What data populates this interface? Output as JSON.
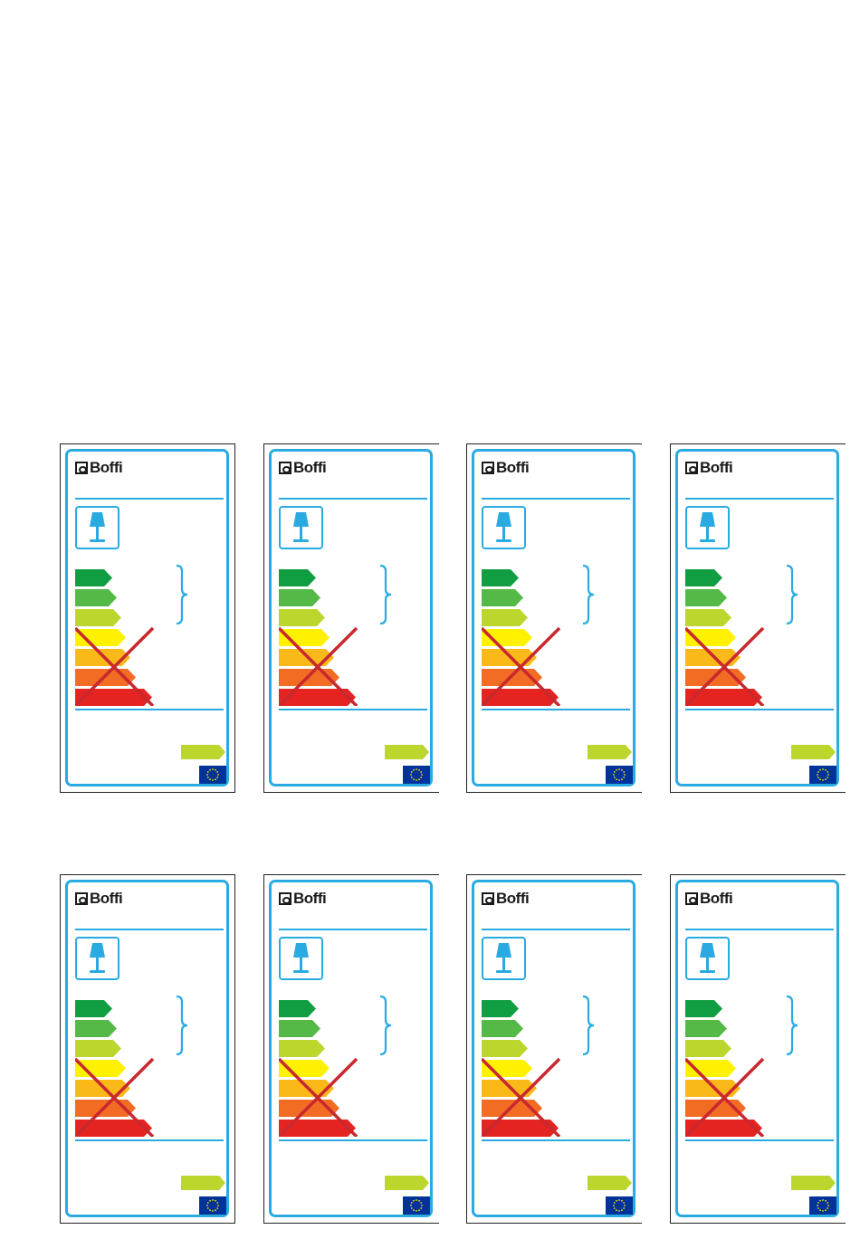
{
  "brand": "Boffi",
  "colors": {
    "frame": "#29abe2",
    "class_a_pp": "#119e43",
    "class_a_p": "#55b947",
    "class_a": "#bdd62e",
    "class_b": "#fff100",
    "class_c": "#fbb919",
    "class_d": "#f26c23",
    "class_e": "#e52421",
    "cross": "#c8282e",
    "eu_blue": "#003399",
    "eu_star": "#ffdd00"
  },
  "icons": [
    "table-lamp-icon",
    "brace-icon",
    "eu-flag-icon"
  ],
  "labels": [
    {
      "id": 1
    },
    {
      "id": 2
    },
    {
      "id": 3
    },
    {
      "id": 4
    },
    {
      "id": 5
    },
    {
      "id": 6
    },
    {
      "id": 7
    },
    {
      "id": 8
    }
  ]
}
